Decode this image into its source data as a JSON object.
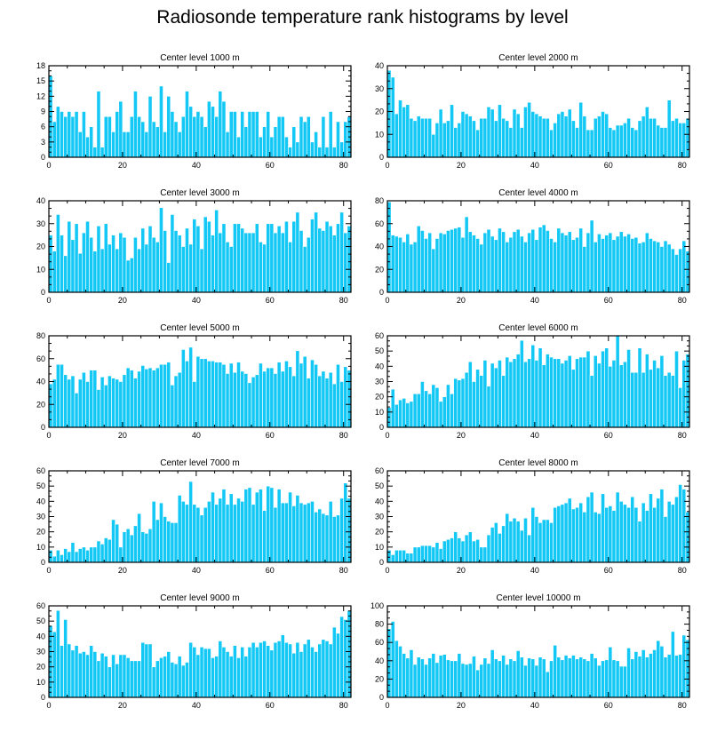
{
  "title": "Radiosonde temperature rank histograms by level",
  "bar_color": "#14c8f5",
  "bar_edge_color": "#ffffff",
  "chart_data": [
    {
      "type": "bar",
      "title": "Center level 1000 m",
      "xlim": [
        0,
        82
      ],
      "ylim": [
        0,
        18
      ],
      "xticks": [
        0,
        20,
        40,
        60,
        80
      ],
      "yticks": [
        0,
        3,
        6,
        9,
        12,
        15,
        18
      ],
      "values": [
        16,
        7,
        10,
        9,
        8,
        9,
        8,
        9,
        5,
        9,
        4,
        6,
        2,
        13,
        2,
        8,
        8,
        5,
        9,
        11,
        5,
        5,
        8,
        13,
        8,
        7,
        5,
        12,
        7,
        6,
        14,
        5,
        12,
        9,
        7,
        5,
        8,
        13,
        10,
        8,
        9,
        8,
        6,
        11,
        10,
        8,
        13,
        11,
        5,
        9,
        9,
        4,
        9,
        6,
        9,
        9,
        9,
        4,
        6,
        9,
        4,
        6,
        8,
        8,
        4,
        2,
        6,
        3,
        8,
        7,
        8,
        3,
        5,
        2,
        8,
        2,
        9,
        2,
        7,
        3,
        7,
        8
      ]
    },
    {
      "type": "bar",
      "title": "Center level 2000 m",
      "xlim": [
        0,
        82
      ],
      "ylim": [
        0,
        40
      ],
      "xticks": [
        0,
        20,
        40,
        60,
        80
      ],
      "yticks": [
        0,
        10,
        20,
        30,
        40
      ],
      "values": [
        38,
        35,
        19,
        25,
        22,
        23,
        17,
        16,
        18,
        17,
        17,
        17,
        10,
        15,
        21,
        15,
        16,
        23,
        13,
        15,
        20,
        19,
        18,
        16,
        12,
        17,
        17,
        22,
        21,
        16,
        23,
        17,
        16,
        13,
        21,
        19,
        13,
        22,
        24,
        20,
        19,
        18,
        17,
        17,
        12,
        15,
        19,
        20,
        18,
        21,
        16,
        13,
        24,
        18,
        12,
        12,
        17,
        18,
        20,
        19,
        13,
        12,
        14,
        14,
        15,
        17,
        13,
        12,
        16,
        18,
        22,
        17,
        17,
        14,
        13,
        13,
        25,
        16,
        17,
        15,
        15,
        17
      ]
    },
    {
      "type": "bar",
      "title": "Center level 3000 m",
      "xlim": [
        0,
        82
      ],
      "ylim": [
        0,
        40
      ],
      "xticks": [
        0,
        20,
        40,
        60,
        80
      ],
      "yticks": [
        0,
        10,
        20,
        30,
        40
      ],
      "values": [
        25,
        18,
        34,
        25,
        16,
        31,
        23,
        30,
        17,
        26,
        31,
        24,
        18,
        29,
        19,
        30,
        21,
        25,
        19,
        26,
        24,
        14,
        15,
        24,
        19,
        28,
        21,
        29,
        24,
        22,
        37,
        27,
        13,
        34,
        27,
        25,
        20,
        28,
        21,
        32,
        29,
        19,
        33,
        31,
        25,
        36,
        26,
        30,
        22,
        20,
        30,
        30,
        28,
        26,
        26,
        26,
        30,
        22,
        21,
        30,
        30,
        26,
        29,
        26,
        31,
        22,
        31,
        35,
        27,
        20,
        24,
        32,
        35,
        28,
        27,
        31,
        29,
        25,
        30,
        35,
        26,
        29
      ]
    },
    {
      "type": "bar",
      "title": "Center level 4000 m",
      "xlim": [
        0,
        82
      ],
      "ylim": [
        0,
        80
      ],
      "xticks": [
        0,
        20,
        40,
        60,
        80
      ],
      "yticks": [
        0,
        20,
        40,
        60,
        80
      ],
      "values": [
        79,
        50,
        49,
        48,
        44,
        51,
        42,
        44,
        58,
        54,
        47,
        52,
        38,
        47,
        52,
        51,
        54,
        55,
        56,
        57,
        48,
        66,
        53,
        50,
        47,
        42,
        52,
        55,
        49,
        46,
        56,
        53,
        44,
        48,
        53,
        55,
        49,
        44,
        52,
        55,
        46,
        57,
        59,
        54,
        47,
        44,
        56,
        52,
        50,
        53,
        46,
        48,
        56,
        40,
        52,
        63,
        44,
        51,
        47,
        50,
        52,
        46,
        49,
        53,
        49,
        51,
        47,
        48,
        43,
        44,
        52,
        47,
        45,
        44,
        40,
        45,
        42,
        38,
        33,
        38,
        45,
        36
      ]
    },
    {
      "type": "bar",
      "title": "Center level 5000 m",
      "xlim": [
        0,
        82
      ],
      "ylim": [
        0,
        80
      ],
      "xticks": [
        0,
        20,
        40,
        60,
        80
      ],
      "yticks": [
        0,
        20,
        40,
        60,
        80
      ],
      "values": [
        38,
        42,
        55,
        55,
        46,
        42,
        45,
        30,
        42,
        48,
        40,
        50,
        50,
        33,
        44,
        37,
        45,
        43,
        42,
        40,
        46,
        52,
        50,
        43,
        49,
        54,
        51,
        52,
        50,
        52,
        55,
        55,
        57,
        37,
        45,
        48,
        68,
        58,
        70,
        40,
        62,
        60,
        60,
        58,
        58,
        57,
        57,
        55,
        47,
        56,
        48,
        57,
        49,
        47,
        39,
        44,
        46,
        56,
        49,
        52,
        52,
        47,
        57,
        49,
        58,
        53,
        45,
        67,
        56,
        62,
        43,
        59,
        55,
        45,
        49,
        43,
        48,
        38,
        55,
        40,
        53,
        50
      ]
    },
    {
      "type": "bar",
      "title": "Center level 6000 m",
      "xlim": [
        0,
        82
      ],
      "ylim": [
        0,
        60
      ],
      "xticks": [
        0,
        20,
        40,
        60,
        80
      ],
      "yticks": [
        0,
        10,
        20,
        30,
        40,
        50,
        60
      ],
      "values": [
        13,
        25,
        15,
        18,
        19,
        16,
        17,
        22,
        22,
        30,
        24,
        22,
        28,
        26,
        17,
        20,
        28,
        22,
        32,
        31,
        32,
        36,
        43,
        30,
        38,
        34,
        44,
        27,
        42,
        39,
        44,
        34,
        46,
        43,
        45,
        48,
        57,
        43,
        45,
        54,
        44,
        52,
        41,
        48,
        46,
        45,
        45,
        42,
        44,
        47,
        38,
        45,
        46,
        46,
        50,
        34,
        47,
        42,
        50,
        52,
        40,
        44,
        60,
        41,
        43,
        51,
        36,
        36,
        52,
        36,
        48,
        38,
        44,
        39,
        47,
        34,
        36,
        34,
        50,
        26,
        44,
        48
      ]
    },
    {
      "type": "bar",
      "title": "Center level 7000 m",
      "xlim": [
        0,
        82
      ],
      "ylim": [
        0,
        60
      ],
      "xticks": [
        0,
        20,
        40,
        60,
        80
      ],
      "yticks": [
        0,
        10,
        20,
        30,
        40,
        50,
        60
      ],
      "values": [
        8,
        4,
        8,
        5,
        9,
        7,
        13,
        7,
        9,
        10,
        8,
        10,
        10,
        14,
        12,
        16,
        15,
        28,
        25,
        10,
        20,
        22,
        18,
        24,
        32,
        20,
        19,
        22,
        40,
        28,
        39,
        30,
        27,
        26,
        26,
        44,
        40,
        38,
        53,
        38,
        36,
        31,
        36,
        40,
        46,
        38,
        42,
        48,
        38,
        45,
        38,
        42,
        40,
        48,
        49,
        38,
        46,
        48,
        34,
        50,
        49,
        36,
        48,
        39,
        39,
        46,
        37,
        44,
        39,
        38,
        39,
        40,
        33,
        35,
        32,
        31,
        40,
        30,
        31,
        42,
        52,
        42
      ]
    },
    {
      "type": "bar",
      "title": "Center level 8000 m",
      "xlim": [
        0,
        82
      ],
      "ylim": [
        0,
        60
      ],
      "xticks": [
        0,
        20,
        40,
        60,
        80
      ],
      "yticks": [
        0,
        10,
        20,
        30,
        40,
        50,
        60
      ],
      "values": [
        8,
        5,
        8,
        8,
        8,
        6,
        6,
        10,
        10,
        11,
        11,
        11,
        10,
        13,
        9,
        14,
        15,
        16,
        20,
        16,
        14,
        18,
        20,
        14,
        15,
        10,
        10,
        18,
        23,
        26,
        19,
        24,
        32,
        27,
        29,
        27,
        21,
        29,
        18,
        36,
        30,
        26,
        28,
        28,
        26,
        36,
        37,
        38,
        39,
        42,
        35,
        36,
        39,
        33,
        43,
        46,
        33,
        32,
        45,
        36,
        37,
        34,
        46,
        40,
        38,
        36,
        43,
        36,
        27,
        39,
        34,
        45,
        36,
        42,
        48,
        30,
        40,
        38,
        43,
        51,
        48,
        33
      ]
    },
    {
      "type": "bar",
      "title": "Center level 9000 m",
      "xlim": [
        0,
        82
      ],
      "ylim": [
        0,
        60
      ],
      "xticks": [
        0,
        20,
        40,
        60,
        80
      ],
      "yticks": [
        0,
        10,
        20,
        30,
        40,
        50,
        60
      ],
      "values": [
        47,
        43,
        57,
        34,
        51,
        35,
        31,
        34,
        29,
        30,
        28,
        34,
        30,
        24,
        29,
        27,
        20,
        28,
        22,
        28,
        28,
        26,
        24,
        24,
        24,
        36,
        35,
        35,
        20,
        24,
        26,
        27,
        30,
        23,
        22,
        27,
        21,
        23,
        36,
        33,
        28,
        33,
        32,
        32,
        26,
        27,
        37,
        33,
        30,
        27,
        34,
        26,
        33,
        27,
        33,
        36,
        33,
        36,
        37,
        34,
        31,
        36,
        37,
        41,
        36,
        35,
        29,
        36,
        30,
        35,
        38,
        33,
        30,
        35,
        38,
        37,
        35,
        46,
        42,
        53,
        51,
        57
      ]
    },
    {
      "type": "bar",
      "title": "Center level 10000 m",
      "xlim": [
        0,
        82
      ],
      "ylim": [
        0,
        100
      ],
      "xticks": [
        0,
        20,
        40,
        60,
        80
      ],
      "yticks": [
        0,
        20,
        40,
        60,
        80,
        100
      ],
      "values": [
        75,
        83,
        62,
        56,
        48,
        43,
        52,
        36,
        44,
        42,
        36,
        43,
        48,
        38,
        46,
        47,
        41,
        40,
        40,
        48,
        37,
        36,
        37,
        45,
        30,
        36,
        43,
        37,
        52,
        42,
        40,
        46,
        36,
        42,
        40,
        51,
        44,
        35,
        43,
        42,
        35,
        44,
        42,
        28,
        40,
        57,
        44,
        41,
        46,
        43,
        46,
        42,
        44,
        42,
        40,
        48,
        43,
        35,
        40,
        41,
        55,
        41,
        40,
        34,
        34,
        54,
        42,
        50,
        45,
        52,
        44,
        48,
        52,
        62,
        56,
        44,
        47,
        72,
        46,
        47,
        68,
        63
      ]
    }
  ]
}
